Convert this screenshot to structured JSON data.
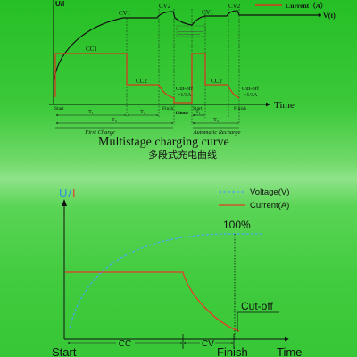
{
  "colors": {
    "top_voltage": "#111111",
    "top_current": "#d63a1e",
    "bottom_voltage": "#4aa9e6",
    "bottom_current": "#e63a2a",
    "u_symbol": "#2a8fe0",
    "i_symbol": "#e63a2a"
  },
  "top_chart": {
    "y_axis_label": "U/I",
    "legend_current": "Current（A）",
    "voltage_end_label": "V(t)",
    "stages": {
      "cc1": "CC1",
      "cc2_first": "CC2",
      "cc2_second": "CC2",
      "cv1_first": "CV1",
      "cv2_first": "CV2",
      "cv1_second": "CV1",
      "cv2_second": "CV2"
    },
    "cutoff_first": {
      "label": "Cut-off",
      "value": "=1/3A"
    },
    "cutoff_second": {
      "label": "Cut-off",
      "value": "=1/3A"
    },
    "x_axis_label": "Time",
    "markers": {
      "start_first": "Start",
      "finish_first": "Finsh",
      "rest": "1 hour",
      "start_second": "Start",
      "finish_second": "Finish"
    },
    "periods": {
      "t1_first": "T₁",
      "t2_first": "T₂",
      "t3_first": "T₃",
      "t1_second": "T₁",
      "t3_second": "T₃"
    },
    "phases": {
      "first": "First Charge",
      "second": "Automatic Recharge"
    }
  },
  "caption": {
    "title": "Multistage charging curve",
    "subtitle": "多段式充电曲线"
  },
  "bottom_chart": {
    "y_axis_symbols": [
      "U",
      "/",
      "I"
    ],
    "legend": {
      "voltage": "Voltage(V)",
      "current": "Current(A)"
    },
    "full_level": "100%",
    "cutoff": "Cut-off",
    "phases": {
      "cc": "CC",
      "cv": "CV"
    },
    "x_labels": {
      "start": "Start",
      "finish": "Finish",
      "time": "Time"
    }
  }
}
